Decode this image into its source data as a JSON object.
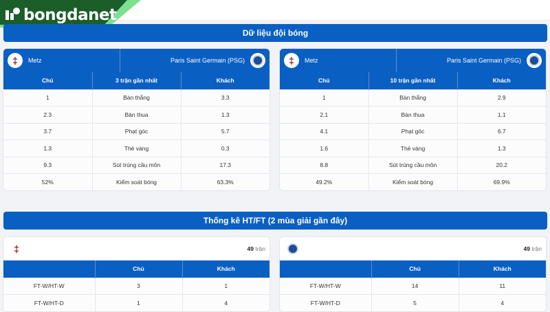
{
  "brand": {
    "name": "bongdanet"
  },
  "section1": {
    "title": "Dữ liệu đội bóng"
  },
  "team_stats": [
    {
      "home": "Metz",
      "away": "Paris Saint Germain (PSG)",
      "headers": [
        "Chủ",
        "3 trận gần nhất",
        "Khách"
      ],
      "rows": [
        [
          "1",
          "Bàn thắng",
          "3.3"
        ],
        [
          "2.3",
          "Bàn thua",
          "1.3"
        ],
        [
          "3.7",
          "Phạt góc",
          "5.7"
        ],
        [
          "1.3",
          "Thẻ vàng",
          "0.3"
        ],
        [
          "9.3",
          "Sút trúng cầu môn",
          "17.3"
        ],
        [
          "52%",
          "Kiểm soát bóng",
          "63.3%"
        ]
      ]
    },
    {
      "home": "Metz",
      "away": "Paris Saint Germain (PSG)",
      "headers": [
        "Chủ",
        "10 trận gần nhất",
        "Khách"
      ],
      "rows": [
        [
          "1",
          "Bàn thắng",
          "2.9"
        ],
        [
          "2.1",
          "Bàn thua",
          "1.1"
        ],
        [
          "4.1",
          "Phạt góc",
          "6.7"
        ],
        [
          "1.6",
          "Thẻ vàng",
          "1.3"
        ],
        [
          "8.8",
          "Sút trúng cầu môn",
          "20.2"
        ],
        [
          "49.2%",
          "Kiểm soát bóng",
          "69.9%"
        ]
      ]
    }
  ],
  "section2": {
    "title": "Thống kê HT/FT (2 mùa giải gần đây)"
  },
  "htft": [
    {
      "team": "Metz",
      "count": "49",
      "count_unit": "trận",
      "headers": [
        "",
        "Chủ",
        "Khách"
      ],
      "rows": [
        [
          "FT-W/HT-W",
          "3",
          "1"
        ],
        [
          "FT-W/HT-D",
          "1",
          "4"
        ]
      ]
    },
    {
      "team": "Paris Saint Germain (PSG)",
      "count": "49",
      "count_unit": "trận",
      "headers": [
        "",
        "Chủ",
        "Khách"
      ],
      "rows": [
        [
          "FT-W/HT-W",
          "14",
          "11"
        ],
        [
          "FT-W/HT-D",
          "5",
          "4"
        ]
      ]
    }
  ],
  "colors": {
    "primary": "#0a5fc2",
    "logo_green": "#1b5e2a",
    "logo_accent": "#5fd37a"
  }
}
